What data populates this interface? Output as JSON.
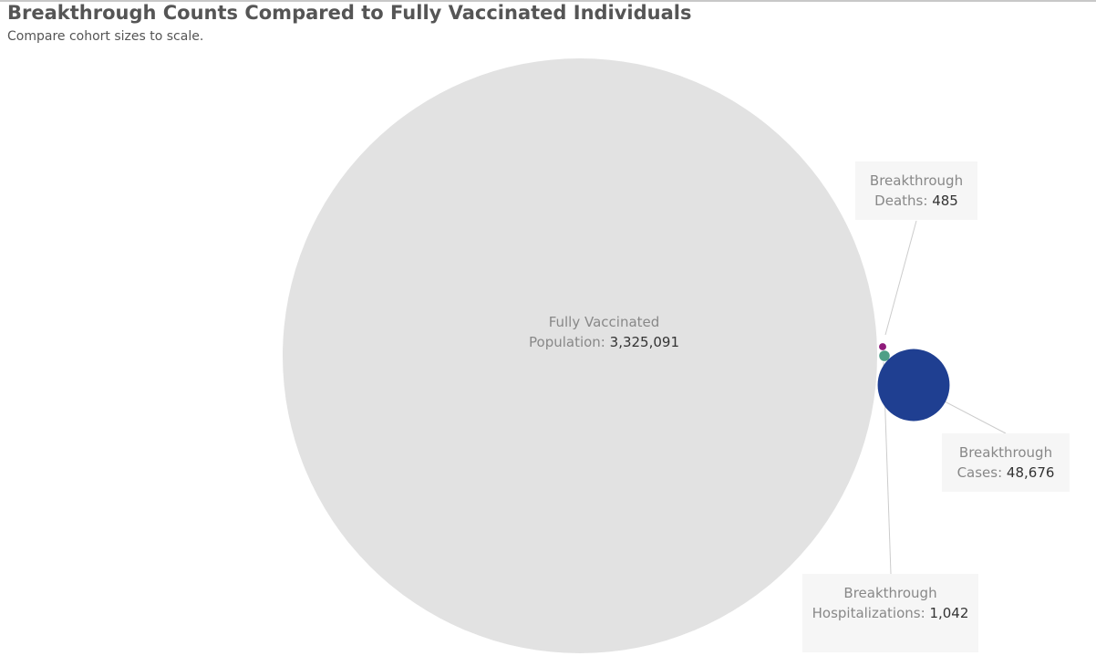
{
  "chart_data": {
    "type": "bubble",
    "title": "Breakthrough Counts Compared to Fully Vaccinated Individuals",
    "subtitle": "Compare cohort sizes to scale.",
    "categories": [
      "Fully Vaccinated Population:",
      "Breakthrough Cases:",
      "Breakthrough Hospitalizations:",
      "Breakthrough Deaths:"
    ],
    "values": [
      3325091,
      48676,
      1042,
      485
    ],
    "value_labels": [
      "3,325,091",
      "48,676",
      "1,042",
      "485"
    ],
    "colors": [
      "#e2e2e2",
      "#1f3f91",
      "#4e9f86",
      "#8e1a7a"
    ]
  }
}
